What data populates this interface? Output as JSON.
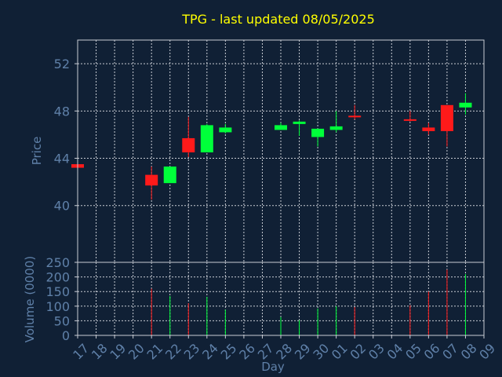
{
  "chart_data": {
    "type": "candlestick",
    "title": "TPG - last updated 08/05/2025",
    "xlabel": "Day",
    "ylabel_price": "Price",
    "ylabel_volume": "Volume (0000)",
    "price_ylim": [
      35.2,
      54.0
    ],
    "price_yticks": [
      40,
      44,
      48,
      52
    ],
    "volume_ylim": [
      0,
      250
    ],
    "volume_yticks": [
      0,
      50,
      100,
      150,
      200,
      250
    ],
    "grid": true,
    "x_ticks": [
      "17",
      "18",
      "19",
      "20",
      "21",
      "22",
      "23",
      "24",
      "25",
      "26",
      "27",
      "28",
      "29",
      "30",
      "01",
      "02",
      "03",
      "04",
      "05",
      "06",
      "07",
      "08",
      "09"
    ],
    "days": [
      {
        "tick": "17",
        "open": 43.5,
        "high": 43.5,
        "low": 43.2,
        "close": 43.2,
        "volume": 0
      },
      {
        "tick": "21",
        "open": 42.6,
        "high": 43.3,
        "low": 40.5,
        "close": 41.7,
        "volume": 160
      },
      {
        "tick": "22",
        "open": 41.9,
        "high": 43.3,
        "low": 41.9,
        "close": 43.3,
        "volume": 135
      },
      {
        "tick": "23",
        "open": 45.7,
        "high": 47.5,
        "low": 44.1,
        "close": 44.5,
        "volume": 110
      },
      {
        "tick": "24",
        "open": 44.5,
        "high": 46.9,
        "low": 44.5,
        "close": 46.8,
        "volume": 132
      },
      {
        "tick": "25",
        "open": 46.2,
        "high": 46.9,
        "low": 46.1,
        "close": 46.6,
        "volume": 88
      },
      {
        "tick": "28",
        "open": 46.4,
        "high": 47.0,
        "low": 46.4,
        "close": 46.8,
        "volume": 63
      },
      {
        "tick": "29",
        "open": 46.9,
        "high": 47.2,
        "low": 45.9,
        "close": 47.1,
        "volume": 52
      },
      {
        "tick": "30",
        "open": 45.8,
        "high": 46.5,
        "low": 45.0,
        "close": 46.5,
        "volume": 92
      },
      {
        "tick": "01",
        "open": 46.4,
        "high": 48.0,
        "low": 46.2,
        "close": 46.7,
        "volume": 100
      },
      {
        "tick": "02",
        "open": 47.6,
        "high": 48.5,
        "low": 47.3,
        "close": 47.5,
        "volume": 97
      },
      {
        "tick": "05",
        "open": 47.3,
        "high": 48.0,
        "low": 47.1,
        "close": 47.2,
        "volume": 103
      },
      {
        "tick": "06",
        "open": 46.6,
        "high": 47.0,
        "low": 46.0,
        "close": 46.3,
        "volume": 150
      },
      {
        "tick": "07",
        "open": 48.5,
        "high": 48.5,
        "low": 45.0,
        "close": 46.3,
        "volume": 225
      },
      {
        "tick": "08",
        "open": 48.3,
        "high": 49.5,
        "low": 47.7,
        "close": 48.7,
        "volume": 210
      }
    ],
    "colors": {
      "background": "#102035",
      "up": "#00ff3a",
      "down": "#ff1a1a",
      "grid": "#c8ccd4",
      "axis": "#c8ccd4",
      "title": "#ffff00",
      "label": "#5f80a8",
      "tick": "#5f80a8"
    }
  }
}
